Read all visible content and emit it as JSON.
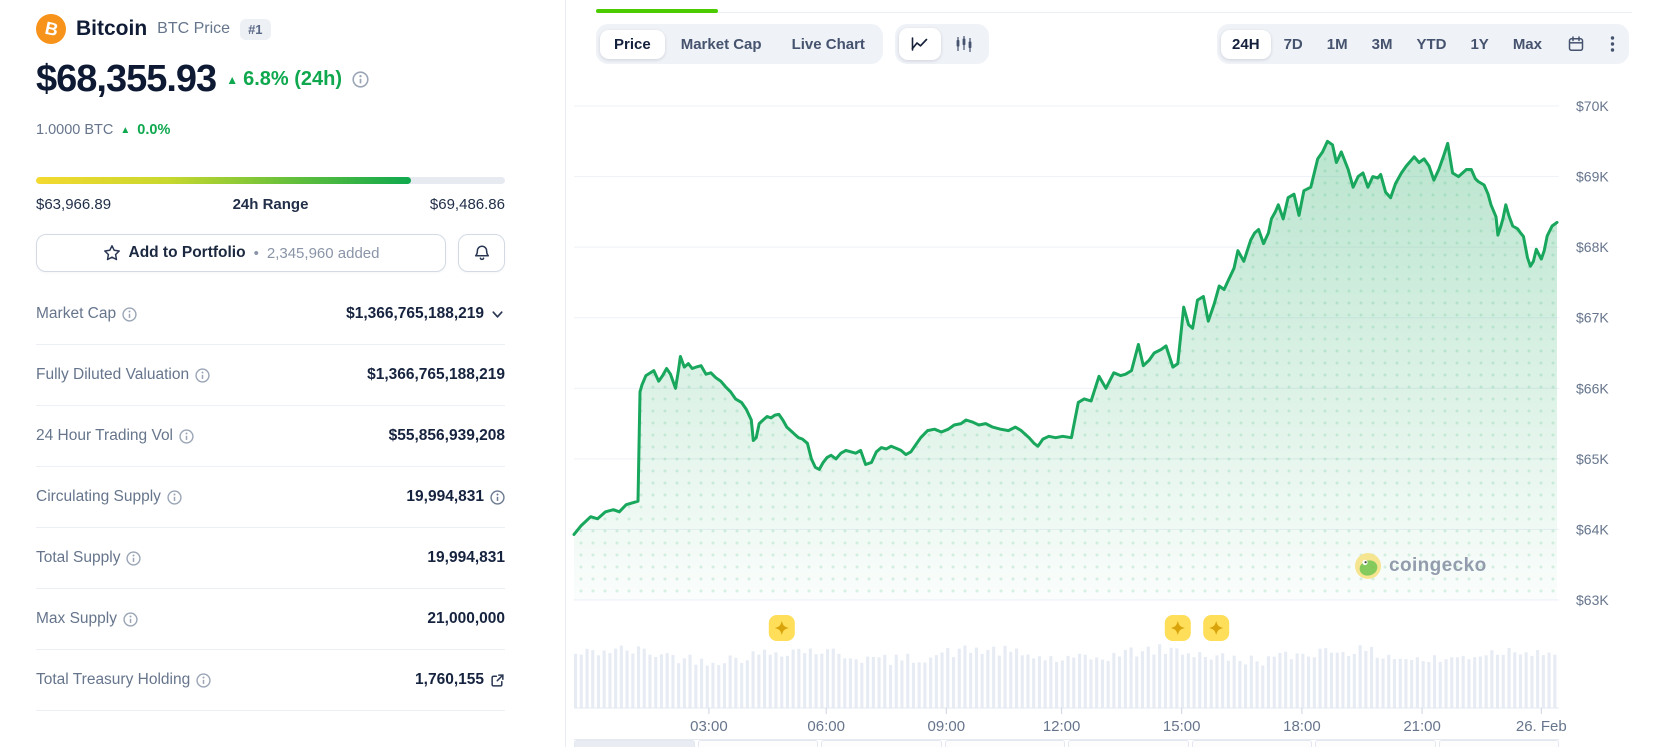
{
  "header": {
    "name": "Bitcoin",
    "ticker_label": "BTC Price",
    "rank_badge": "#1"
  },
  "price_section": {
    "price": "$68,355.93",
    "up_arrow": "▲",
    "change": "6.8% (24h)",
    "btc_equiv": "1.0000 BTC",
    "btc_change": "0.0%"
  },
  "range_section": {
    "low": "$63,966.89",
    "center_label": "24h Range",
    "high": "$69,486.86",
    "fill_pct": 80
  },
  "actions": {
    "add_to_portfolio": "Add to Portfolio",
    "separator": "•",
    "added_count": "2,345,960 added"
  },
  "stats": [
    {
      "label": "Market Cap",
      "value": "$1,366,765,188,219",
      "trailing": "chevron-down"
    },
    {
      "label": "Fully Diluted Valuation",
      "value": "$1,366,765,188,219",
      "trailing": null
    },
    {
      "label": "24 Hour Trading Vol",
      "value": "$55,856,939,208",
      "trailing": null
    },
    {
      "label": "Circulating Supply",
      "value": "19,994,831",
      "trailing": "info"
    },
    {
      "label": "Total Supply",
      "value": "19,994,831",
      "trailing": null
    },
    {
      "label": "Max Supply",
      "value": "21,000,000",
      "trailing": null
    },
    {
      "label": "Total Treasury Holding",
      "value": "1,760,155",
      "trailing": "external-link"
    }
  ],
  "chart_header": {
    "tabs": [
      "Price",
      "Market Cap",
      "Live Chart"
    ],
    "active_tab": "Price",
    "chart_types": [
      "line-chart",
      "candlestick-chart"
    ],
    "active_chart_type": "line-chart",
    "ranges": [
      "24H",
      "7D",
      "1M",
      "3M",
      "YTD",
      "1Y",
      "Max"
    ],
    "active_range": "24H"
  },
  "watermark": "coingecko",
  "colors": {
    "positive_green": "#0FA84E",
    "line_green": "#18A75C",
    "tab_underline_green": "#4BCC00",
    "bitcoin_orange": "#F7931A",
    "axis_text": "#66758C"
  },
  "chart_data": {
    "type": "area",
    "title": "Bitcoin BTC price, 24H range",
    "currency": "USD",
    "ylim": [
      63000,
      70000
    ],
    "grid": "horizontal-only",
    "legend": "none",
    "y_ticks": [
      {
        "label": "$70K",
        "value": 70000
      },
      {
        "label": "$69K",
        "value": 69000
      },
      {
        "label": "$68K",
        "value": 68000
      },
      {
        "label": "$67K",
        "value": 67000
      },
      {
        "label": "$66K",
        "value": 66000
      },
      {
        "label": "$65K",
        "value": 65000
      },
      {
        "label": "$64K",
        "value": 64000
      },
      {
        "label": "$63K",
        "value": 63000
      }
    ],
    "x_ticks": [
      {
        "label": "03:00",
        "pos": 0.137
      },
      {
        "label": "06:00",
        "pos": 0.256
      },
      {
        "label": "09:00",
        "pos": 0.378
      },
      {
        "label": "12:00",
        "pos": 0.495
      },
      {
        "label": "15:00",
        "pos": 0.617
      },
      {
        "label": "18:00",
        "pos": 0.739
      },
      {
        "label": "21:00",
        "pos": 0.861
      },
      {
        "label": "26. Feb",
        "pos": 0.982
      }
    ],
    "series": [
      {
        "name": "BTC price (USD)",
        "color": "#18A75C",
        "points": [
          [
            0.0,
            63930
          ],
          [
            0.007,
            64050
          ],
          [
            0.017,
            64180
          ],
          [
            0.024,
            64150
          ],
          [
            0.032,
            64250
          ],
          [
            0.04,
            64280
          ],
          [
            0.046,
            64250
          ],
          [
            0.053,
            64350
          ],
          [
            0.065,
            64400
          ],
          [
            0.067,
            65950
          ],
          [
            0.069,
            66050
          ],
          [
            0.073,
            66180
          ],
          [
            0.081,
            66250
          ],
          [
            0.086,
            66100
          ],
          [
            0.09,
            66180
          ],
          [
            0.094,
            66280
          ],
          [
            0.098,
            66200
          ],
          [
            0.103,
            66000
          ],
          [
            0.106,
            66250
          ],
          [
            0.108,
            66450
          ],
          [
            0.112,
            66300
          ],
          [
            0.116,
            66350
          ],
          [
            0.12,
            66280
          ],
          [
            0.124,
            66300
          ],
          [
            0.129,
            66320
          ],
          [
            0.134,
            66200
          ],
          [
            0.139,
            66220
          ],
          [
            0.144,
            66150
          ],
          [
            0.149,
            66100
          ],
          [
            0.154,
            66020
          ],
          [
            0.159,
            65950
          ],
          [
            0.164,
            65850
          ],
          [
            0.17,
            65800
          ],
          [
            0.175,
            65700
          ],
          [
            0.18,
            65550
          ],
          [
            0.182,
            65260
          ],
          [
            0.185,
            65300
          ],
          [
            0.188,
            65500
          ],
          [
            0.192,
            65550
          ],
          [
            0.196,
            65600
          ],
          [
            0.2,
            65580
          ],
          [
            0.204,
            65620
          ],
          [
            0.208,
            65630
          ],
          [
            0.212,
            65550
          ],
          [
            0.216,
            65450
          ],
          [
            0.22,
            65400
          ],
          [
            0.224,
            65350
          ],
          [
            0.228,
            65300
          ],
          [
            0.232,
            65280
          ],
          [
            0.237,
            65220
          ],
          [
            0.241,
            65000
          ],
          [
            0.245,
            64880
          ],
          [
            0.249,
            64850
          ],
          [
            0.253,
            64950
          ],
          [
            0.257,
            65020
          ],
          [
            0.261,
            65050
          ],
          [
            0.266,
            65000
          ],
          [
            0.271,
            65080
          ],
          [
            0.276,
            65120
          ],
          [
            0.281,
            65100
          ],
          [
            0.286,
            65080
          ],
          [
            0.291,
            65120
          ],
          [
            0.296,
            64920
          ],
          [
            0.302,
            64950
          ],
          [
            0.307,
            65100
          ],
          [
            0.312,
            65160
          ],
          [
            0.317,
            65140
          ],
          [
            0.322,
            65180
          ],
          [
            0.327,
            65150
          ],
          [
            0.332,
            65120
          ],
          [
            0.337,
            65060
          ],
          [
            0.342,
            65100
          ],
          [
            0.347,
            65200
          ],
          [
            0.352,
            65300
          ],
          [
            0.359,
            65400
          ],
          [
            0.366,
            65420
          ],
          [
            0.373,
            65380
          ],
          [
            0.38,
            65420
          ],
          [
            0.386,
            65480
          ],
          [
            0.393,
            65500
          ],
          [
            0.398,
            65550
          ],
          [
            0.405,
            65520
          ],
          [
            0.411,
            65480
          ],
          [
            0.418,
            65500
          ],
          [
            0.425,
            65450
          ],
          [
            0.433,
            65420
          ],
          [
            0.441,
            65400
          ],
          [
            0.448,
            65450
          ],
          [
            0.454,
            65400
          ],
          [
            0.462,
            65300
          ],
          [
            0.467,
            65220
          ],
          [
            0.471,
            65180
          ],
          [
            0.476,
            65280
          ],
          [
            0.482,
            65320
          ],
          [
            0.489,
            65300
          ],
          [
            0.496,
            65320
          ],
          [
            0.505,
            65300
          ],
          [
            0.512,
            65800
          ],
          [
            0.518,
            65850
          ],
          [
            0.525,
            65820
          ],
          [
            0.533,
            66170
          ],
          [
            0.54,
            66000
          ],
          [
            0.548,
            66220
          ],
          [
            0.555,
            66180
          ],
          [
            0.56,
            66200
          ],
          [
            0.566,
            66250
          ],
          [
            0.573,
            66620
          ],
          [
            0.578,
            66320
          ],
          [
            0.584,
            66400
          ],
          [
            0.589,
            66500
          ],
          [
            0.596,
            66550
          ],
          [
            0.601,
            66600
          ],
          [
            0.608,
            66300
          ],
          [
            0.613,
            66350
          ],
          [
            0.619,
            67150
          ],
          [
            0.624,
            66900
          ],
          [
            0.628,
            66850
          ],
          [
            0.633,
            67250
          ],
          [
            0.639,
            67300
          ],
          [
            0.644,
            66950
          ],
          [
            0.65,
            67200
          ],
          [
            0.655,
            67450
          ],
          [
            0.66,
            67400
          ],
          [
            0.665,
            67550
          ],
          [
            0.67,
            67700
          ],
          [
            0.674,
            67950
          ],
          [
            0.68,
            67800
          ],
          [
            0.687,
            68100
          ],
          [
            0.691,
            68200
          ],
          [
            0.695,
            68250
          ],
          [
            0.7,
            68050
          ],
          [
            0.705,
            68200
          ],
          [
            0.708,
            68400
          ],
          [
            0.712,
            68500
          ],
          [
            0.715,
            68600
          ],
          [
            0.72,
            68400
          ],
          [
            0.725,
            68700
          ],
          [
            0.731,
            68750
          ],
          [
            0.736,
            68450
          ],
          [
            0.741,
            68800
          ],
          [
            0.748,
            68850
          ],
          [
            0.755,
            69250
          ],
          [
            0.76,
            69350
          ],
          [
            0.765,
            69500
          ],
          [
            0.77,
            69450
          ],
          [
            0.774,
            69200
          ],
          [
            0.779,
            69350
          ],
          [
            0.786,
            69100
          ],
          [
            0.791,
            68850
          ],
          [
            0.796,
            69000
          ],
          [
            0.801,
            69050
          ],
          [
            0.806,
            68850
          ],
          [
            0.811,
            69000
          ],
          [
            0.816,
            68980
          ],
          [
            0.819,
            69030
          ],
          [
            0.824,
            68780
          ],
          [
            0.829,
            68700
          ],
          [
            0.834,
            68900
          ],
          [
            0.84,
            69050
          ],
          [
            0.845,
            69150
          ],
          [
            0.853,
            69280
          ],
          [
            0.858,
            69200
          ],
          [
            0.863,
            69250
          ],
          [
            0.868,
            69150
          ],
          [
            0.873,
            68950
          ],
          [
            0.878,
            69100
          ],
          [
            0.883,
            69300
          ],
          [
            0.887,
            69470
          ],
          [
            0.892,
            69050
          ],
          [
            0.898,
            69000
          ],
          [
            0.902,
            69050
          ],
          [
            0.906,
            69100
          ],
          [
            0.911,
            69100
          ],
          [
            0.915,
            68970
          ],
          [
            0.918,
            68930
          ],
          [
            0.924,
            68880
          ],
          [
            0.928,
            68750
          ],
          [
            0.931,
            68600
          ],
          [
            0.936,
            68430
          ],
          [
            0.938,
            68170
          ],
          [
            0.941,
            68300
          ],
          [
            0.943,
            68400
          ],
          [
            0.946,
            68600
          ],
          [
            0.949,
            68450
          ],
          [
            0.953,
            68300
          ],
          [
            0.958,
            68260
          ],
          [
            0.961,
            68200
          ],
          [
            0.964,
            68150
          ],
          [
            0.968,
            67850
          ],
          [
            0.971,
            67730
          ],
          [
            0.974,
            67800
          ],
          [
            0.977,
            67970
          ],
          [
            0.982,
            67830
          ],
          [
            0.985,
            67950
          ],
          [
            0.988,
            68160
          ],
          [
            0.993,
            68300
          ],
          [
            0.998,
            68350
          ]
        ]
      }
    ],
    "event_markers": [
      {
        "pos": 0.211
      },
      {
        "pos": 0.613
      },
      {
        "pos": 0.652
      }
    ],
    "marker_style": "yellow-star-badge",
    "volume_bars": {
      "count": 172,
      "style": "uniform-light-gray",
      "note": "near-constant height strip under price area"
    }
  }
}
